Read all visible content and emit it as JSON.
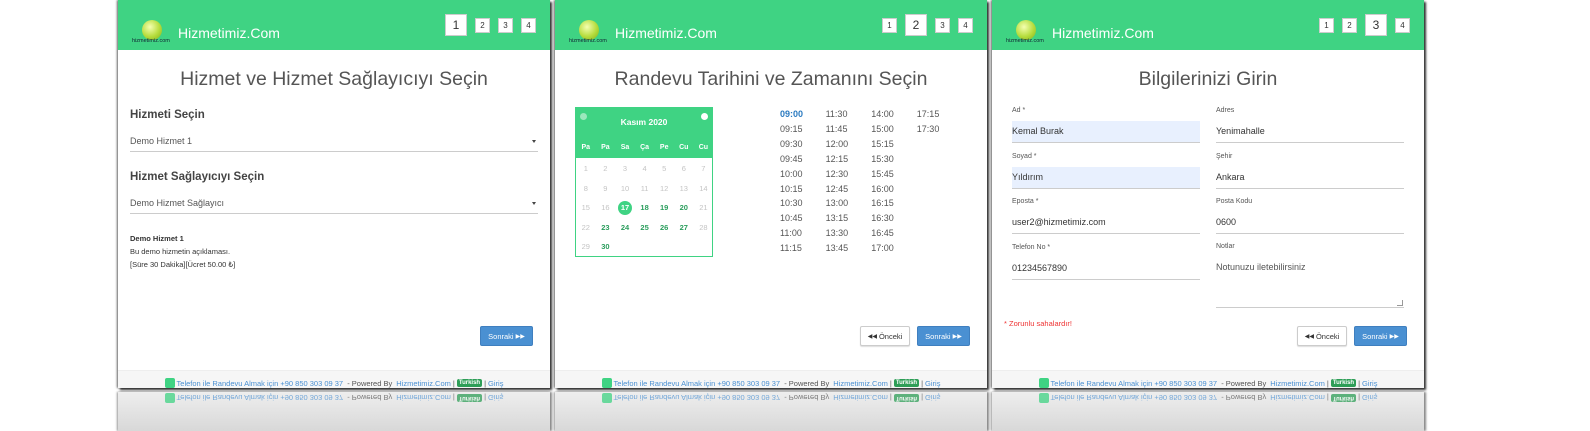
{
  "panels": [
    {
      "header": {
        "logo_text": "hizmetimiz.com",
        "brand": "Hizmetimiz.Com",
        "steps": [
          {
            "label": "1",
            "active": true
          },
          {
            "label": "2",
            "active": false
          },
          {
            "label": "3",
            "active": false
          },
          {
            "label": "4",
            "active": false
          }
        ]
      },
      "title": "Hizmet ve Hizmet Sağlayıcıyı Seçin",
      "sections": [
        {
          "heading": "Hizmeti Seçin",
          "select": "Demo Hizmet 1"
        },
        {
          "heading": "Hizmet Sağlayıcıyı Seçin",
          "select": "Demo Hizmet Sağlayıcı"
        }
      ],
      "description": {
        "name": "Demo Hizmet 1",
        "text": "Bu demo hizmetin açıklaması.",
        "details": "[Süre 30 Dakika][Ücret 50.00 ₺]"
      },
      "buttons": [
        {
          "label": "Sonraki",
          "kind": "next"
        }
      ],
      "footer": {
        "phone": "Telefon ile Randevu Almak için +90 850 303 09 37",
        "powered_by": " - Powered By ",
        "brand_link": "Hizmetimiz.Com",
        "separator": "|",
        "language": "Turkish",
        "login": "Giriş"
      }
    },
    {
      "header": {
        "logo_text": "hizmetimiz.com",
        "brand": "Hizmetimiz.Com",
        "steps": [
          {
            "label": "1",
            "active": false
          },
          {
            "label": "2",
            "active": true
          },
          {
            "label": "3",
            "active": false
          },
          {
            "label": "4",
            "active": false
          }
        ]
      },
      "title": "Randevu Tarihini ve Zamanını Seçin",
      "calendar": {
        "month": "Kasım 2020",
        "weekdays": [
          "Pa",
          "Pa",
          "Sa",
          "Ça",
          "Pe",
          "Cu",
          "Cu"
        ],
        "weeks": [
          [
            {
              "day": "1",
              "state": "disabled"
            },
            {
              "day": "2",
              "state": "disabled"
            },
            {
              "day": "3",
              "state": "disabled"
            },
            {
              "day": "4",
              "state": "disabled"
            },
            {
              "day": "5",
              "state": "disabled"
            },
            {
              "day": "6",
              "state": "disabled"
            },
            {
              "day": "7",
              "state": "disabled"
            }
          ],
          [
            {
              "day": "8",
              "state": "disabled"
            },
            {
              "day": "9",
              "state": "disabled"
            },
            {
              "day": "10",
              "state": "disabled"
            },
            {
              "day": "11",
              "state": "disabled"
            },
            {
              "day": "12",
              "state": "disabled"
            },
            {
              "day": "13",
              "state": "disabled"
            },
            {
              "day": "14",
              "state": "disabled"
            }
          ],
          [
            {
              "day": "15",
              "state": "disabled"
            },
            {
              "day": "16",
              "state": "disabled"
            },
            {
              "day": "17",
              "state": "selected"
            },
            {
              "day": "18",
              "state": "available"
            },
            {
              "day": "19",
              "state": "available"
            },
            {
              "day": "20",
              "state": "available"
            },
            {
              "day": "21",
              "state": "disabled"
            }
          ],
          [
            {
              "day": "22",
              "state": "disabled"
            },
            {
              "day": "23",
              "state": "available"
            },
            {
              "day": "24",
              "state": "available"
            },
            {
              "day": "25",
              "state": "available"
            },
            {
              "day": "26",
              "state": "available"
            },
            {
              "day": "27",
              "state": "available"
            },
            {
              "day": "28",
              "state": "disabled"
            }
          ],
          [
            {
              "day": "29",
              "state": "disabled"
            },
            {
              "day": "30",
              "state": "available"
            }
          ]
        ]
      },
      "time_columns": [
        [
          "09:00",
          "09:15",
          "09:30",
          "09:45",
          "10:00",
          "10:15",
          "10:30",
          "10:45",
          "11:00",
          "11:15"
        ],
        [
          "11:30",
          "11:45",
          "12:00",
          "12:15",
          "12:30",
          "12:45",
          "13:00",
          "13:15",
          "13:30",
          "13:45"
        ],
        [
          "14:00",
          "15:00",
          "15:15",
          "15:30",
          "15:45",
          "16:00",
          "16:15",
          "16:30",
          "16:45",
          "17:00"
        ],
        [
          "17:15",
          "17:30"
        ]
      ],
      "selected_time": [
        0,
        0
      ],
      "buttons": [
        {
          "label": "Önceki",
          "kind": "prev"
        },
        {
          "label": "Sonraki",
          "kind": "next"
        }
      ],
      "footer": {
        "phone": "Telefon ile Randevu Almak için +90 850 303 09 37",
        "powered_by": " - Powered By ",
        "brand_link": "Hizmetimiz.Com",
        "separator": "|",
        "language": "Turkish",
        "login": "Giriş"
      }
    },
    {
      "header": {
        "logo_text": "hizmetimiz.com",
        "brand": "Hizmetimiz.Com",
        "steps": [
          {
            "label": "1",
            "active": false
          },
          {
            "label": "2",
            "active": false
          },
          {
            "label": "3",
            "active": true
          },
          {
            "label": "4",
            "active": false
          }
        ]
      },
      "title": "Bilgilerinizi Girin",
      "form": {
        "left": [
          {
            "label": "Ad *",
            "value": "Kemal Burak",
            "autofill": true
          },
          {
            "label": "Soyad *",
            "value": "Yıldırım",
            "autofill": true
          },
          {
            "label": "Eposta *",
            "value": "user2@hizmetimiz.com",
            "autofill": false
          },
          {
            "label": "Telefon No *",
            "value": "01234567890",
            "autofill": false
          }
        ],
        "right": [
          {
            "label": "Adres",
            "value": "Yenimahalle",
            "autofill": false
          },
          {
            "label": "Şehir",
            "value": "Ankara",
            "autofill": false
          },
          {
            "label": "Posta Kodu",
            "value": "0600",
            "autofill": false
          }
        ],
        "notes": {
          "label": "Notlar",
          "placeholder": "Notunuzu iletebilirsiniz"
        },
        "required_note": "* Zorunlu sahalardır!"
      },
      "buttons": [
        {
          "label": "Önceki",
          "kind": "prev"
        },
        {
          "label": "Sonraki",
          "kind": "next"
        }
      ],
      "footer": {
        "phone": "Telefon ile Randevu Almak için +90 850 303 09 37",
        "powered_by": " - Powered By ",
        "brand_link": "Hizmetimiz.Com",
        "separator": "|",
        "language": "Turkish",
        "login": "Giriş"
      }
    }
  ]
}
